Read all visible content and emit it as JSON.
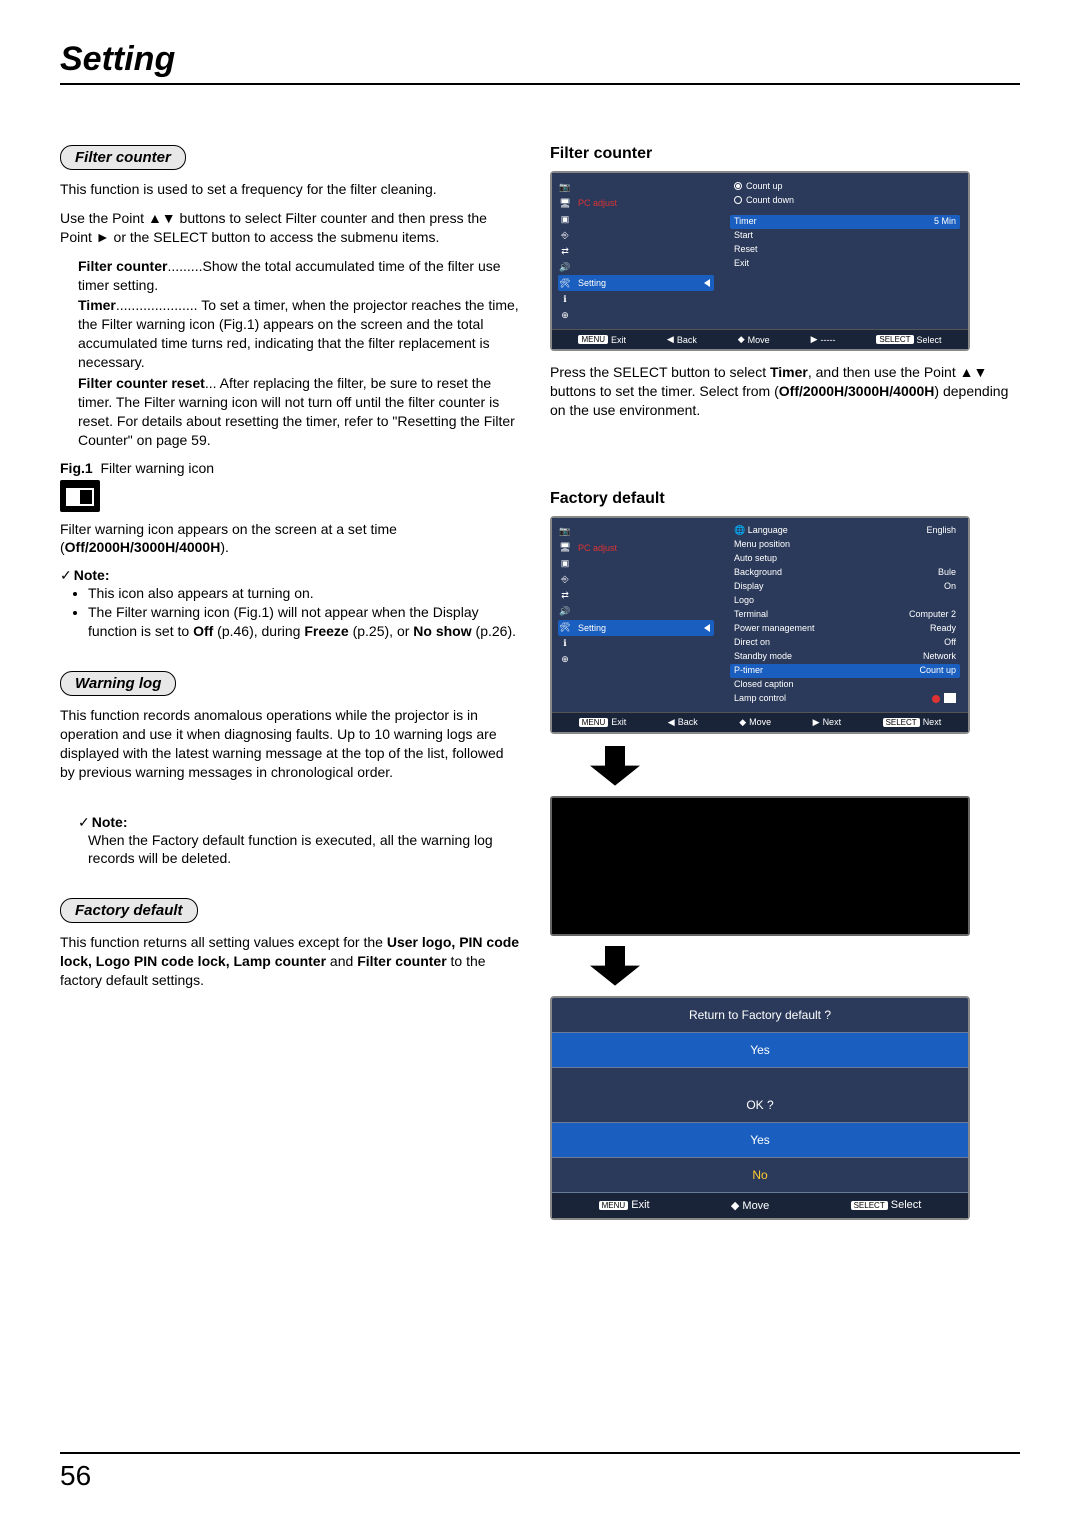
{
  "page": {
    "title": "Setting",
    "number": "56"
  },
  "filter_counter": {
    "heading": "Filter counter",
    "intro1": "This function is used to set a frequency for the filter cleaning.",
    "intro2": "Use the Point ▲▼ buttons to select Filter counter and then press the Point ► or the SELECT button to access the submenu items.",
    "defs": [
      {
        "label": "Filter counter",
        "dots": ".........",
        "val": "Show the total accumulated time of the filter use timer setting."
      },
      {
        "label": "Timer",
        "dots": ".....................",
        "val": "To set a timer, when the projector reaches the time, the Filter warning icon (Fig.1) appears on the screen and the total accumulated time turns red, indicating that the filter replacement is necessary."
      },
      {
        "label": "Filter counter reset",
        "dots": "...",
        "val": "After replacing the filter, be sure to reset the timer. The Filter warning icon will not turn off until the filter counter is reset. For details about resetting the timer, refer to \"Resetting the Filter Counter\" on page 59."
      }
    ],
    "fig_label_bold": "Fig.1",
    "fig_label_rest": "Filter warning icon",
    "after_fig1": "Filter warning icon appears on the screen at a set time (",
    "after_fig_bold": "Off/2000H/3000H/4000H",
    "after_fig2": ").",
    "note_head": "Note:",
    "notes": [
      "This icon also appears at turning on.",
      "The Filter warning icon (Fig.1) will not appear when the Display function is set to Off (p.46), during Freeze (p.25), or No show (p.26)."
    ]
  },
  "warning_log": {
    "heading": "Warning log",
    "body": "This function records anomalous operations while the projector is in operation and use it when diagnosing faults. Up to 10 warning logs are displayed with the latest warning message at the top of the list, followed by previous warning messages in chronological order.",
    "note_head": "Note:",
    "note_body": "When the Factory default function is executed, all the warning log records will be deleted."
  },
  "factory_default_left": {
    "heading": "Factory default",
    "body1": "This function returns all setting values except for the ",
    "bold_list": "User logo, PIN code lock, Logo PIN code lock, Lamp counter",
    "body2": " and ",
    "bold2": "Filter counter",
    "body3": " to the factory default settings."
  },
  "right_filter": {
    "heading": "Filter counter",
    "side_label": "PC adjust",
    "side_setting": "Setting",
    "radios": [
      "Count up",
      "Count down"
    ],
    "items": [
      {
        "l": "Timer",
        "r": "5 Min"
      },
      {
        "l": "Start",
        "r": ""
      },
      {
        "l": "Reset",
        "r": ""
      },
      {
        "l": "Exit",
        "r": ""
      }
    ],
    "footer": {
      "exit": "Exit",
      "back": "Back",
      "move": "Move",
      "dash": "-----",
      "select": "Select"
    },
    "caption1": "Press the SELECT button to select ",
    "caption_bold1": "Timer",
    "caption2": ", and then use the Point ▲▼ buttons to set the timer. Select from (",
    "caption_bold2": "Off/2000H/3000H/4000H",
    "caption3": ") depending on the use environment."
  },
  "right_factory": {
    "heading": "Factory default",
    "side_label": "PC adjust",
    "side_setting": "Setting",
    "items": [
      {
        "l": "Language",
        "r": "English",
        "globe": true
      },
      {
        "l": "Menu position",
        "r": ""
      },
      {
        "l": "Auto setup",
        "r": ""
      },
      {
        "l": "Background",
        "r": "Bule"
      },
      {
        "l": "Display",
        "r": "On"
      },
      {
        "l": "Logo",
        "r": ""
      },
      {
        "l": "Terminal",
        "r": "Computer 2"
      },
      {
        "l": "Power management",
        "r": "Ready"
      },
      {
        "l": "Direct on",
        "r": "Off"
      },
      {
        "l": "Standby mode",
        "r": "Network"
      },
      {
        "l": "P-timer",
        "r": "Count up",
        "hl": true
      },
      {
        "l": "Closed caption",
        "r": ""
      },
      {
        "l": "Lamp control",
        "r": "",
        "lamp": true
      }
    ],
    "footer": {
      "exit": "Exit",
      "back": "Back",
      "move": "Move",
      "next": "Next",
      "select_next": "Next"
    }
  },
  "dialog1": {
    "q": "Return to Factory default ?",
    "yes": "Yes"
  },
  "dialog2": {
    "q": "OK ?",
    "yes": "Yes",
    "no": "No",
    "footer": {
      "exit": "Exit",
      "move": "Move",
      "select": "Select"
    }
  }
}
